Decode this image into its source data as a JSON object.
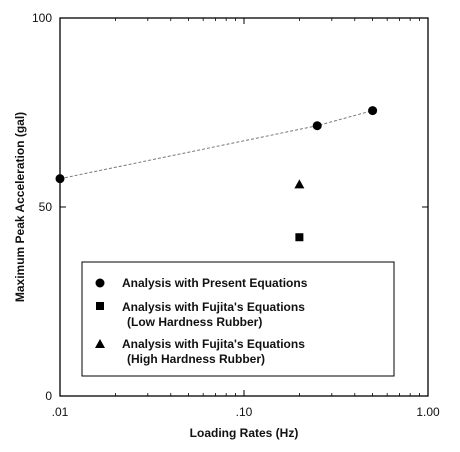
{
  "chart_data": {
    "type": "scatter",
    "title": "",
    "xlabel": "Loading Rates (Hz)",
    "ylabel": "Maximum Peak Acceleration (gal)",
    "xscale": "log",
    "xlim": [
      0.01,
      1.0
    ],
    "ylim": [
      0,
      100
    ],
    "x_tick_values": [
      0.01,
      0.1,
      1.0
    ],
    "x_tick_labels": [
      ".01",
      ".10",
      "1.00"
    ],
    "y_tick_values": [
      0,
      50,
      100
    ],
    "y_tick_labels": [
      "0",
      "50",
      "100"
    ],
    "grid": false,
    "legend_position": "bottom-center",
    "series": [
      {
        "name": "Analysis with Present Equations",
        "marker": "circle",
        "color": "#000000",
        "trendline": "dashed",
        "points": [
          {
            "x": 0.01,
            "y": 57.5
          },
          {
            "x": 0.25,
            "y": 71.5
          },
          {
            "x": 0.5,
            "y": 75.5
          }
        ]
      },
      {
        "name": "Analysis with Fujita's Equations",
        "name_line2": "(Low Hardness Rubber)",
        "marker": "square",
        "color": "#000000",
        "points": [
          {
            "x": 0.2,
            "y": 42
          }
        ]
      },
      {
        "name": "Analysis with Fujita's Equations",
        "name_line2": "(High Hardness Rubber)",
        "marker": "triangle",
        "color": "#000000",
        "points": [
          {
            "x": 0.2,
            "y": 56
          }
        ]
      }
    ]
  }
}
